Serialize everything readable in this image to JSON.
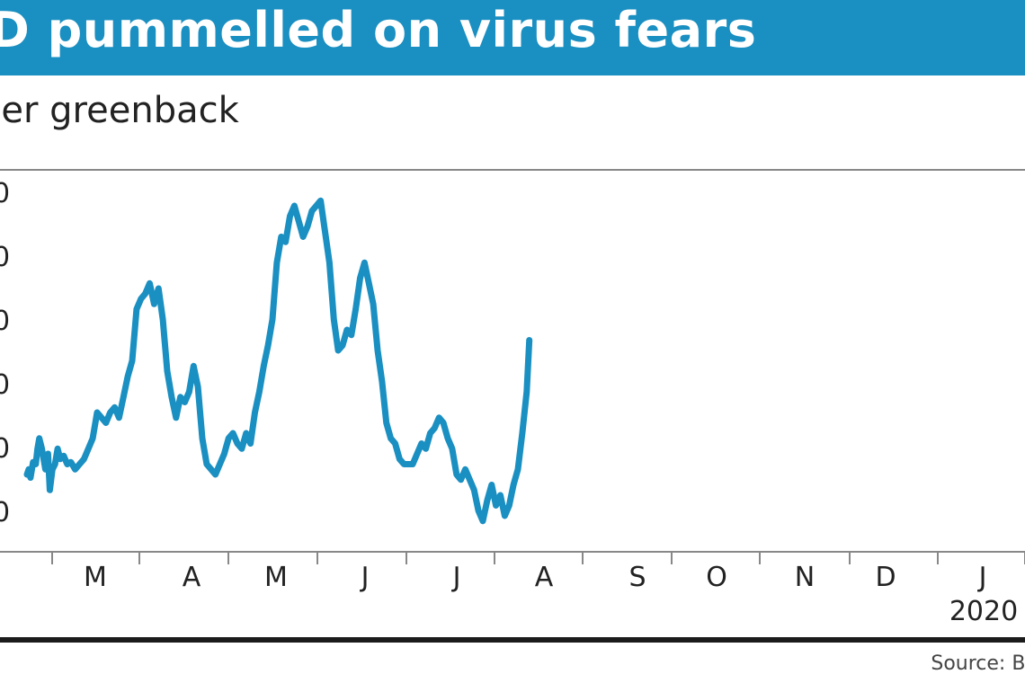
{
  "header": {
    "title": "D pummelled on virus fears",
    "subtitle": "per greenback"
  },
  "source": "Source: Blo",
  "colors": {
    "title_bar": "#1a8fc1",
    "line": "#1a8fc1"
  },
  "chart_data": {
    "type": "line",
    "title": "D pummelled on virus fears",
    "subtitle": "per greenback",
    "x_tick_labels": [
      "M",
      "A",
      "M",
      "J",
      "J",
      "A",
      "S",
      "O",
      "N",
      "D",
      "J"
    ],
    "year_label": "2020",
    "y_tick_labels": [
      "0",
      "0",
      "0",
      "0",
      "0",
      "0"
    ],
    "grid": false,
    "series": [
      {
        "values": [
          [
            0.0,
            0.0
          ],
          [
            0.02,
            0.05
          ],
          [
            0.04,
            -0.03
          ],
          [
            0.07,
            0.12
          ],
          [
            0.1,
            0.1
          ],
          [
            0.12,
            0.25
          ],
          [
            0.14,
            0.35
          ],
          [
            0.17,
            0.25
          ],
          [
            0.19,
            0.15
          ],
          [
            0.21,
            0.05
          ],
          [
            0.24,
            0.2
          ],
          [
            0.26,
            -0.15
          ],
          [
            0.29,
            0.05
          ],
          [
            0.32,
            0.1
          ],
          [
            0.35,
            0.25
          ],
          [
            0.38,
            0.15
          ],
          [
            0.42,
            0.18
          ],
          [
            0.46,
            0.1
          ],
          [
            0.5,
            0.12
          ],
          [
            0.55,
            0.05
          ],
          [
            0.6,
            0.1
          ],
          [
            0.65,
            0.15
          ],
          [
            0.7,
            0.25
          ],
          [
            0.75,
            0.35
          ],
          [
            0.8,
            0.6
          ],
          [
            0.85,
            0.55
          ],
          [
            0.9,
            0.5
          ],
          [
            0.95,
            0.6
          ],
          [
            1.0,
            0.65
          ],
          [
            1.05,
            0.55
          ],
          [
            1.1,
            0.75
          ],
          [
            1.15,
            0.95
          ],
          [
            1.2,
            1.1
          ],
          [
            1.25,
            1.6
          ],
          [
            1.3,
            1.7
          ],
          [
            1.35,
            1.75
          ],
          [
            1.4,
            1.85
          ],
          [
            1.45,
            1.65
          ],
          [
            1.5,
            1.8
          ],
          [
            1.55,
            1.5
          ],
          [
            1.6,
            1.0
          ],
          [
            1.65,
            0.75
          ],
          [
            1.7,
            0.55
          ],
          [
            1.75,
            0.75
          ],
          [
            1.8,
            0.7
          ],
          [
            1.85,
            0.8
          ],
          [
            1.9,
            1.05
          ],
          [
            1.95,
            0.85
          ],
          [
            2.0,
            0.35
          ],
          [
            2.05,
            0.1
          ],
          [
            2.1,
            0.05
          ],
          [
            2.15,
            0.0
          ],
          [
            2.2,
            0.1
          ],
          [
            2.25,
            0.2
          ],
          [
            2.3,
            0.35
          ],
          [
            2.35,
            0.4
          ],
          [
            2.4,
            0.3
          ],
          [
            2.45,
            0.25
          ],
          [
            2.5,
            0.4
          ],
          [
            2.55,
            0.3
          ],
          [
            2.6,
            0.6
          ],
          [
            2.65,
            0.8
          ],
          [
            2.7,
            1.05
          ],
          [
            2.75,
            1.25
          ],
          [
            2.8,
            1.5
          ],
          [
            2.85,
            2.05
          ],
          [
            2.9,
            2.3
          ],
          [
            2.95,
            2.25
          ],
          [
            3.0,
            2.5
          ],
          [
            3.05,
            2.6
          ],
          [
            3.1,
            2.45
          ],
          [
            3.15,
            2.3
          ],
          [
            3.2,
            2.4
          ],
          [
            3.25,
            2.55
          ],
          [
            3.3,
            2.6
          ],
          [
            3.35,
            2.65
          ],
          [
            3.4,
            2.35
          ],
          [
            3.45,
            2.05
          ],
          [
            3.5,
            1.5
          ],
          [
            3.55,
            1.2
          ],
          [
            3.6,
            1.25
          ],
          [
            3.65,
            1.4
          ],
          [
            3.7,
            1.35
          ],
          [
            3.75,
            1.6
          ],
          [
            3.8,
            1.9
          ],
          [
            3.85,
            2.05
          ],
          [
            3.9,
            1.85
          ],
          [
            3.95,
            1.65
          ],
          [
            4.0,
            1.2
          ],
          [
            4.05,
            0.9
          ],
          [
            4.1,
            0.5
          ],
          [
            4.15,
            0.35
          ],
          [
            4.2,
            0.3
          ],
          [
            4.25,
            0.15
          ],
          [
            4.3,
            0.1
          ],
          [
            4.35,
            0.1
          ],
          [
            4.4,
            0.1
          ],
          [
            4.45,
            0.2
          ],
          [
            4.5,
            0.3
          ],
          [
            4.55,
            0.25
          ],
          [
            4.6,
            0.4
          ],
          [
            4.65,
            0.45
          ],
          [
            4.7,
            0.55
          ],
          [
            4.75,
            0.5
          ],
          [
            4.8,
            0.35
          ],
          [
            4.85,
            0.25
          ],
          [
            4.9,
            0.0
          ],
          [
            4.95,
            -0.05
          ],
          [
            5.0,
            0.05
          ],
          [
            5.05,
            -0.05
          ],
          [
            5.1,
            -0.15
          ],
          [
            5.15,
            -0.35
          ],
          [
            5.2,
            -0.45
          ],
          [
            5.25,
            -0.25
          ],
          [
            5.3,
            -0.1
          ],
          [
            5.35,
            -0.3
          ],
          [
            5.4,
            -0.2
          ],
          [
            5.45,
            -0.4
          ],
          [
            5.5,
            -0.3
          ],
          [
            5.55,
            -0.1
          ],
          [
            5.6,
            0.05
          ],
          [
            5.65,
            0.4
          ],
          [
            5.7,
            0.8
          ],
          [
            5.73,
            1.3
          ]
        ]
      }
    ]
  }
}
